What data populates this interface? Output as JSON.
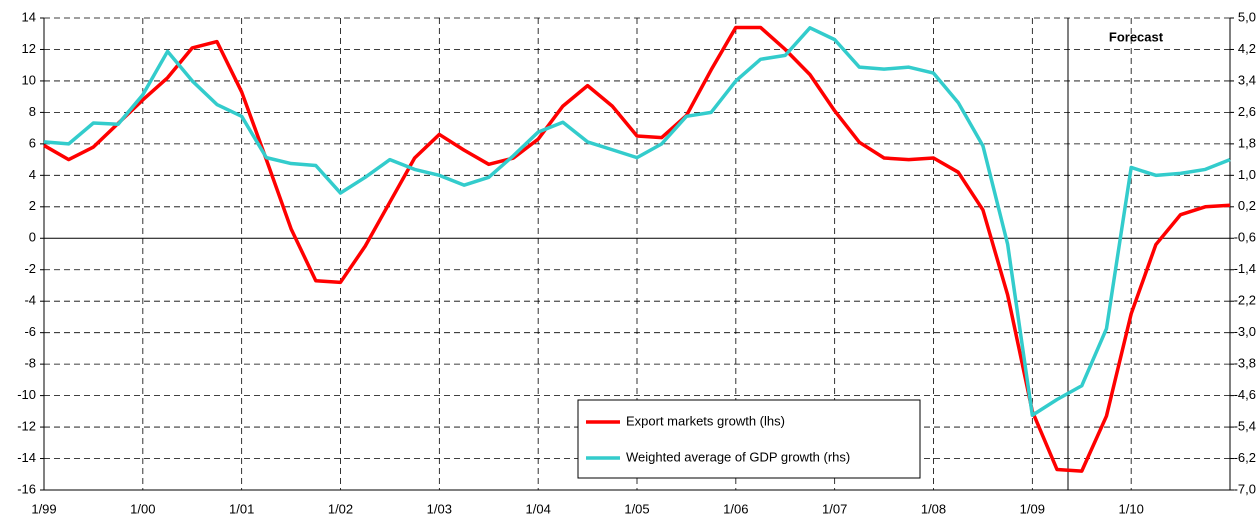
{
  "chart_data": {
    "type": "line",
    "categories": [
      "1/99",
      null,
      null,
      null,
      "1/00",
      null,
      null,
      null,
      "1/01",
      null,
      null,
      null,
      "1/02",
      null,
      null,
      null,
      "1/03",
      null,
      null,
      null,
      "1/04",
      null,
      null,
      null,
      "1/05",
      null,
      null,
      null,
      "1/06",
      null,
      null,
      null,
      "1/07",
      null,
      null,
      null,
      "1/08",
      null,
      null,
      null,
      "1/09",
      null,
      null,
      null,
      "1/10",
      null,
      null,
      null,
      null
    ],
    "series": [
      {
        "name": "Export markets growth (lhs)",
        "color": "#ff0000",
        "values": [
          5.9,
          5.0,
          5.8,
          7.3,
          8.8,
          10.2,
          12.1,
          12.5,
          9.3,
          5.0,
          0.6,
          -2.7,
          -2.8,
          -0.5,
          2.3,
          5.1,
          6.6,
          5.6,
          4.7,
          5.1,
          6.3,
          8.4,
          9.7,
          8.4,
          6.5,
          6.4,
          7.8,
          10.7,
          13.4,
          13.4,
          12.0,
          10.4,
          8.1,
          6.1,
          5.1,
          5.0,
          5.1,
          4.2,
          1.8,
          -3.6,
          -11.0,
          -14.7,
          -14.8,
          -11.3,
          -4.8,
          -0.4,
          1.5,
          2.0,
          2.1
        ]
      },
      {
        "name": "Weighted average of GDP growth (rhs)",
        "color": "#33cccc",
        "axis": "y2",
        "values": [
          1.85,
          1.8,
          2.33,
          2.3,
          3.05,
          4.15,
          3.4,
          2.8,
          2.5,
          1.45,
          1.3,
          1.25,
          0.55,
          0.95,
          1.4,
          1.15,
          1.0,
          0.75,
          0.95,
          1.5,
          2.1,
          2.35,
          1.85,
          1.65,
          1.45,
          1.8,
          2.5,
          2.6,
          3.4,
          3.95,
          4.05,
          4.75,
          4.45,
          3.75,
          3.7,
          3.75,
          3.6,
          2.85,
          1.75,
          -0.75,
          -5.1,
          -4.7,
          -4.35,
          -2.9,
          1.2,
          1.0,
          1.05,
          1.15,
          1.4
        ]
      }
    ],
    "ylim": [
      -16,
      14
    ],
    "yticks": [
      -16,
      -14,
      -12,
      -10,
      -8,
      -6,
      -4,
      -2,
      0,
      2,
      4,
      6,
      8,
      10,
      12,
      14
    ],
    "y2lim": [
      -7.0,
      5.0
    ],
    "y2ticks": [
      {
        "value": -7.0,
        "label": "-7,0"
      },
      {
        "value": -6.2,
        "label": "-6,2"
      },
      {
        "value": -5.4,
        "label": "-5,4"
      },
      {
        "value": -4.6,
        "label": "-4,6"
      },
      {
        "value": -3.8,
        "label": "-3,8"
      },
      {
        "value": -3.0,
        "label": "-3,0"
      },
      {
        "value": -2.2,
        "label": "-2,2"
      },
      {
        "value": -1.4,
        "label": "-1,4"
      },
      {
        "value": -0.6,
        "label": "-0,6"
      },
      {
        "value": 0.2,
        "label": "0,2"
      },
      {
        "value": 1.0,
        "label": "1,0"
      },
      {
        "value": 1.8,
        "label": "1,8"
      },
      {
        "value": 2.6,
        "label": "2,6"
      },
      {
        "value": 3.4,
        "label": "3,4"
      },
      {
        "value": 4.2,
        "label": "4,2"
      },
      {
        "value": 5.0,
        "label": "5,0"
      }
    ],
    "grid": true,
    "legend": "lower center",
    "annotation": "Forecast"
  }
}
